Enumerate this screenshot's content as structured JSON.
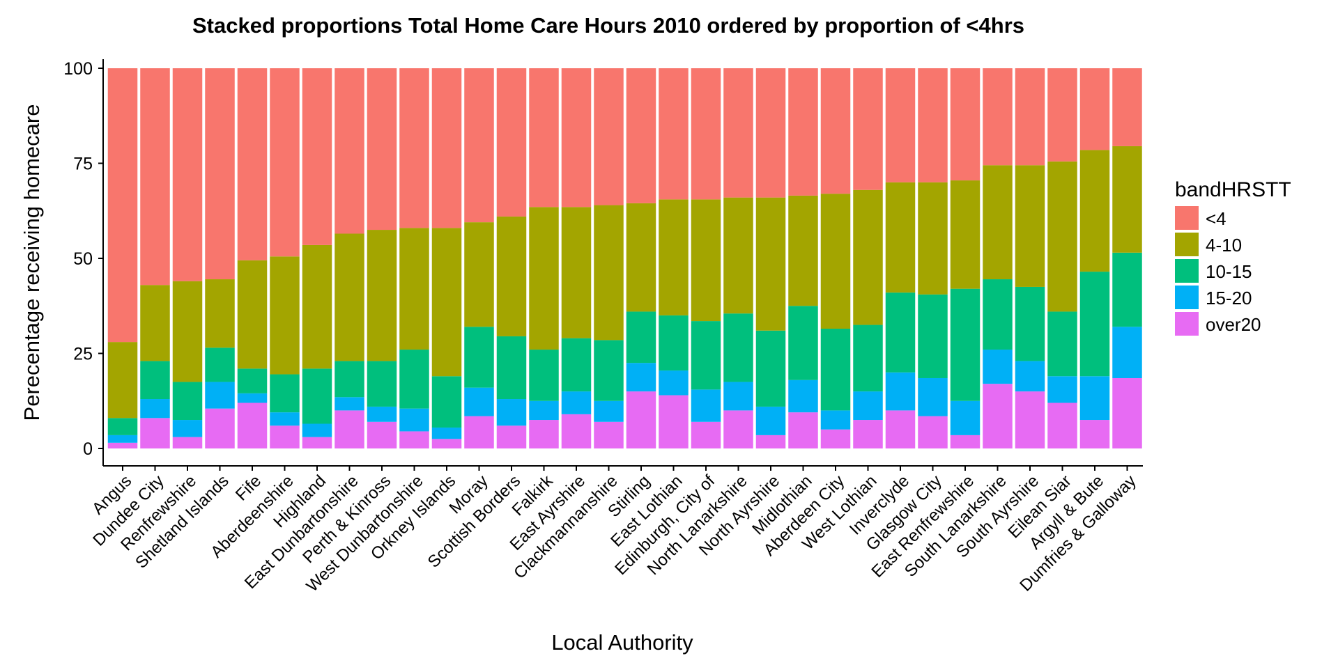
{
  "chart_data": {
    "type": "bar",
    "stacked": true,
    "title": "Stacked proportions Total Home Care Hours 2010 ordered by proportion of <4hrs",
    "xlabel": "Local Authority",
    "ylabel": "Perecentage receiving homecare",
    "ylim": [
      0,
      100
    ],
    "yticks": [
      0,
      25,
      50,
      75,
      100
    ],
    "grid": false,
    "legend": {
      "title": "bandHRSTT",
      "position": "right"
    },
    "categories": [
      "Angus",
      "Dundee City",
      "Renfrewshire",
      "Shetland Islands",
      "Fife",
      "Aberdeenshire",
      "Highland",
      "East Dunbartonshire",
      "Perth & Kinross",
      "West Dunbartonshire",
      "Orkney Islands",
      "Moray",
      "Scottish Borders",
      "Falkirk",
      "East Ayrshire",
      "Clackmannanshire",
      "Stirling",
      "East Lothian",
      "Edinburgh, City of",
      "North Lanarkshire",
      "North Ayrshire",
      "Midlothian",
      "Aberdeen City",
      "West Lothian",
      "Inverclyde",
      "Glasgow City",
      "East Renfrewshire",
      "South Lanarkshire",
      "South Ayrshire",
      "Eilean Siar",
      "Argyll & Bute",
      "Dumfries & Galloway"
    ],
    "series": [
      {
        "name": "over20",
        "color": "#E76BF3",
        "values": [
          1.5,
          8,
          3,
          10.5,
          12,
          6,
          3,
          10,
          7,
          4.5,
          2.5,
          8.5,
          6,
          7.5,
          9,
          7,
          15,
          14,
          7,
          10,
          3.5,
          9.5,
          5,
          7.5,
          10,
          8.5,
          3.5,
          17,
          15,
          12,
          7.5,
          18.5
        ]
      },
      {
        "name": "15-20",
        "color": "#00B0F6",
        "values": [
          2,
          5,
          4.5,
          7,
          2.5,
          3.5,
          3.5,
          3.5,
          4,
          6,
          3,
          7.5,
          7,
          5,
          6,
          5.5,
          7.5,
          6.5,
          8.5,
          7.5,
          7.5,
          8.5,
          5,
          7.5,
          10,
          10,
          9,
          9,
          8,
          7,
          11.5,
          13.5
        ]
      },
      {
        "name": "10-15",
        "color": "#00BF7D",
        "values": [
          4.5,
          10,
          10,
          9,
          6.5,
          10,
          14.5,
          9.5,
          12,
          15.5,
          13.5,
          16,
          16.5,
          13.5,
          14,
          16,
          13.5,
          14.5,
          18,
          18,
          20,
          19.5,
          21.5,
          17.5,
          21,
          22,
          29.5,
          18.5,
          19.5,
          17,
          27.5,
          19.5
        ]
      },
      {
        "name": "4-10",
        "color": "#A3A500",
        "values": [
          20,
          20,
          26.5,
          18,
          28.5,
          31,
          32.5,
          33.5,
          34.5,
          32,
          39,
          27.5,
          31.5,
          37.5,
          34.5,
          35.5,
          28.5,
          30.5,
          32,
          30.5,
          35,
          29,
          35.5,
          35.5,
          29,
          29.5,
          28.5,
          30,
          32,
          39.5,
          32,
          28
        ]
      },
      {
        "name": "<4",
        "color": "#F8766D",
        "values": [
          72,
          57,
          56,
          55.5,
          50.5,
          49.5,
          46.5,
          43.5,
          42.5,
          42,
          42,
          40.5,
          39,
          36.5,
          36.5,
          36,
          35.5,
          34.5,
          34.5,
          34,
          34,
          33.5,
          33,
          32,
          30,
          30,
          29.5,
          25.5,
          25.5,
          24.5,
          21.5,
          20.5
        ]
      }
    ]
  }
}
